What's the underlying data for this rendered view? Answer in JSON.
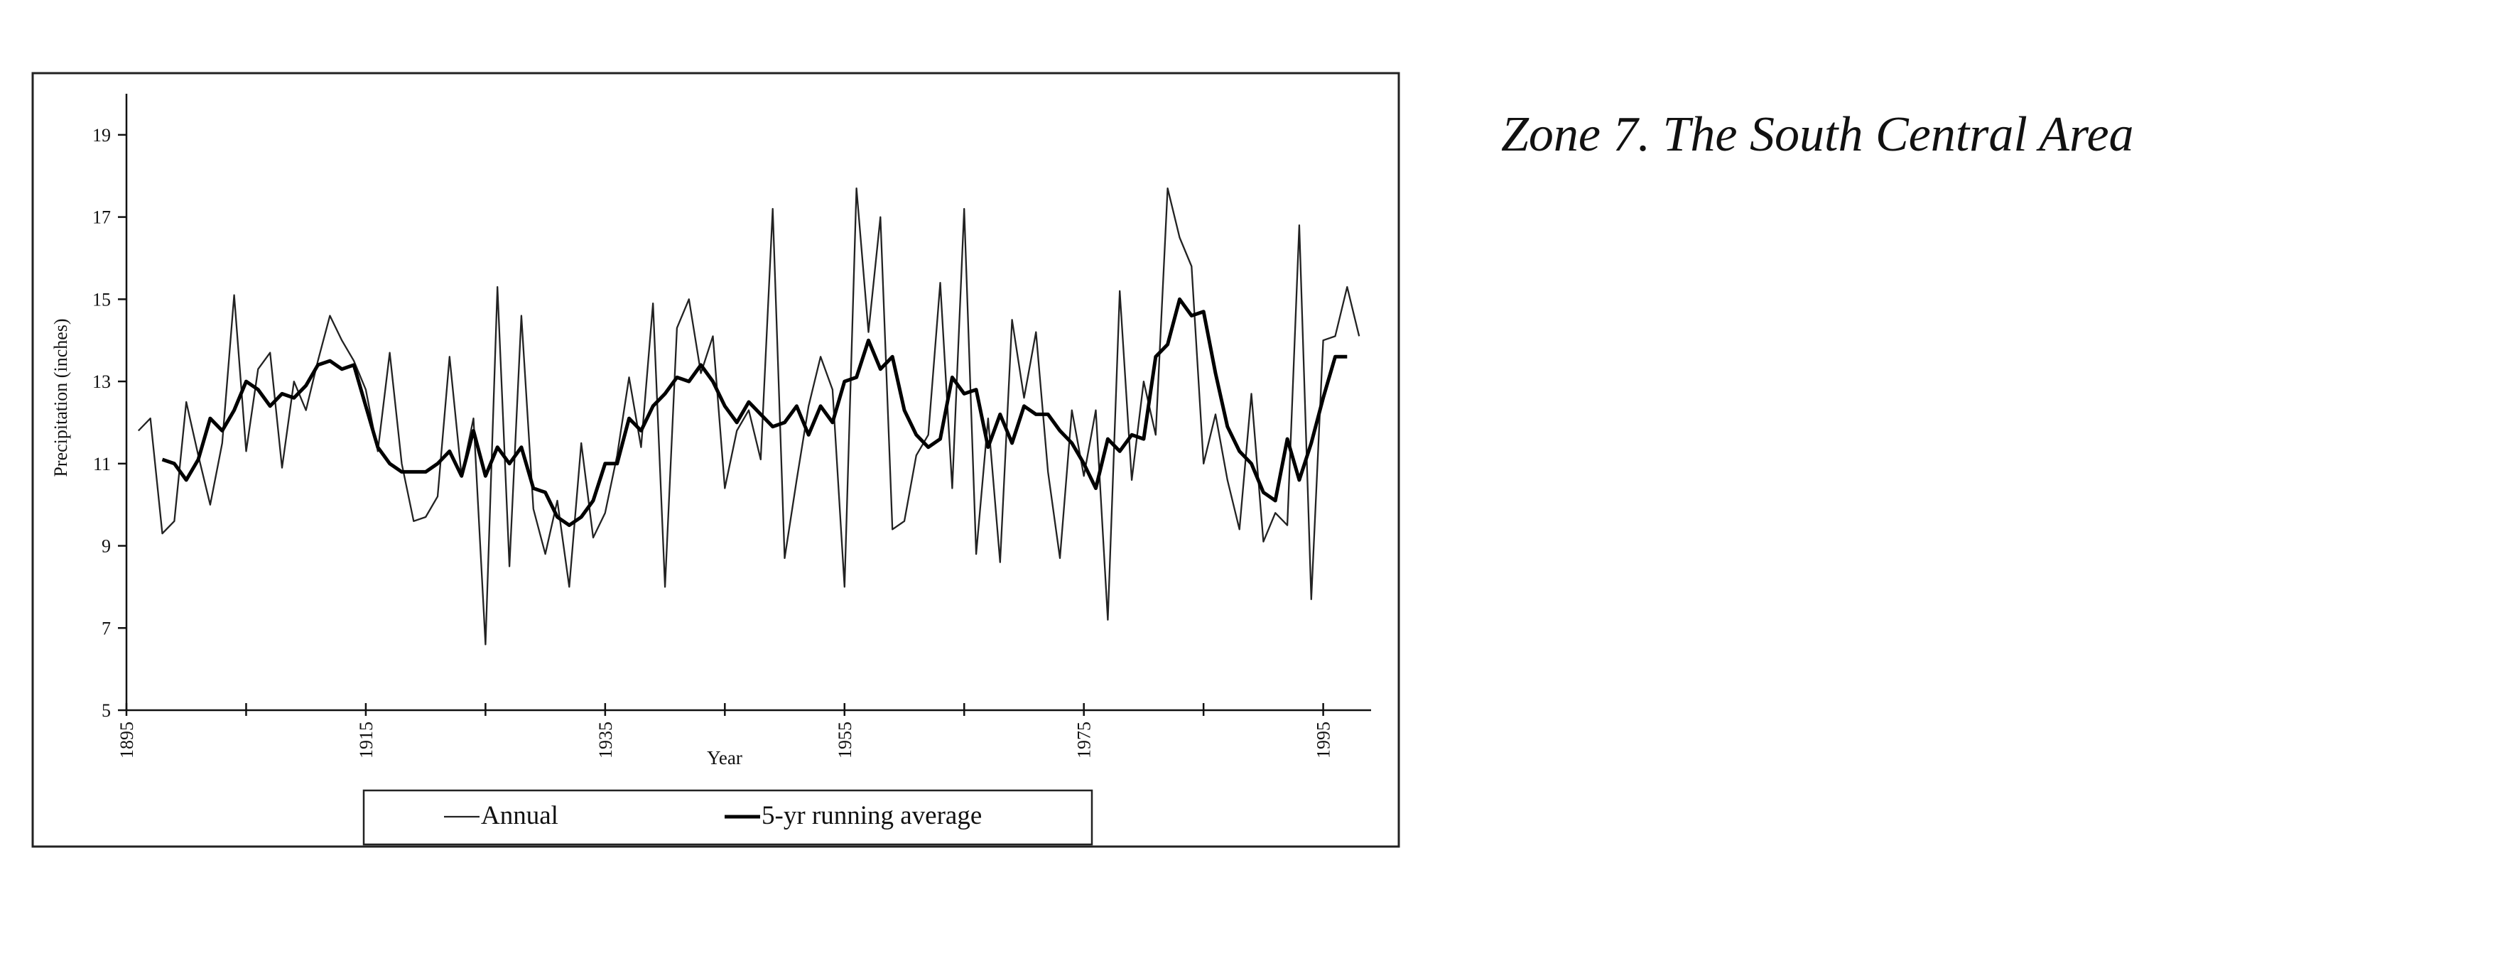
{
  "chart_data": {
    "type": "line",
    "title": "Zone 7. The South Central Area",
    "xlabel": "Year",
    "ylabel": "Precipitation (inches)",
    "x": [
      1896,
      1897,
      1898,
      1899,
      1900,
      1901,
      1902,
      1903,
      1904,
      1905,
      1906,
      1907,
      1908,
      1909,
      1910,
      1911,
      1912,
      1913,
      1914,
      1915,
      1916,
      1917,
      1918,
      1919,
      1920,
      1921,
      1922,
      1923,
      1924,
      1925,
      1926,
      1927,
      1928,
      1929,
      1930,
      1931,
      1932,
      1933,
      1934,
      1935,
      1936,
      1937,
      1938,
      1939,
      1940,
      1941,
      1942,
      1943,
      1944,
      1945,
      1946,
      1947,
      1948,
      1949,
      1950,
      1951,
      1952,
      1953,
      1954,
      1955,
      1956,
      1957,
      1958,
      1959,
      1960,
      1961,
      1962,
      1963,
      1964,
      1965,
      1966,
      1967,
      1968,
      1969,
      1970,
      1971,
      1972,
      1973,
      1974,
      1975,
      1976,
      1977,
      1978,
      1979,
      1980,
      1981,
      1982,
      1983,
      1984,
      1985,
      1986,
      1987,
      1988,
      1989,
      1990,
      1991,
      1992,
      1993,
      1994,
      1995,
      1996,
      1997,
      1998
    ],
    "series": [
      {
        "name": "Annual",
        "color": "#222222",
        "width": 2.3,
        "values": [
          11.8,
          12.1,
          9.3,
          9.6,
          12.5,
          11.2,
          10.0,
          11.5,
          15.1,
          11.3,
          13.3,
          13.7,
          10.9,
          13.0,
          12.3,
          13.5,
          14.6,
          14.0,
          13.5,
          12.8,
          11.3,
          13.7,
          11.0,
          9.6,
          9.7,
          10.2,
          13.6,
          10.7,
          12.1,
          6.6,
          15.3,
          8.5,
          14.6,
          9.9,
          8.8,
          10.1,
          8.0,
          11.5,
          9.2,
          9.8,
          11.2,
          13.1,
          11.4,
          14.9,
          8.0,
          14.3,
          15.0,
          13.2,
          14.1,
          10.4,
          11.8,
          12.3,
          11.1,
          17.2,
          8.7,
          10.6,
          12.4,
          13.6,
          12.8,
          8.0,
          17.7,
          14.2,
          17.0,
          9.4,
          9.6,
          11.2,
          11.7,
          15.4,
          10.4,
          17.2,
          8.8,
          12.1,
          8.6,
          14.5,
          12.6,
          14.2,
          10.8,
          8.7,
          12.3,
          10.7,
          12.3,
          7.2,
          15.2,
          10.6,
          13.0,
          11.7,
          17.7,
          16.5,
          15.8,
          11.0,
          12.2,
          10.6,
          9.4,
          12.7,
          9.1,
          9.8,
          9.5,
          16.8,
          7.7,
          14.0,
          14.1,
          15.3,
          14.1
        ]
      },
      {
        "name": "5-yr running average",
        "color": "#000000",
        "width": 5,
        "values": [
          null,
          null,
          11.1,
          11.0,
          10.6,
          11.1,
          12.1,
          11.8,
          12.3,
          13.0,
          12.8,
          12.4,
          12.7,
          12.6,
          12.9,
          13.4,
          13.5,
          13.3,
          13.4,
          12.4,
          11.4,
          11.0,
          10.8,
          10.8,
          10.8,
          11.0,
          11.3,
          10.7,
          11.8,
          10.7,
          11.4,
          11.0,
          11.4,
          10.4,
          10.3,
          9.7,
          9.5,
          9.7,
          10.1,
          11.0,
          11.0,
          12.1,
          11.8,
          12.4,
          12.7,
          13.1,
          13.0,
          13.4,
          13.0,
          12.4,
          12.0,
          12.5,
          12.2,
          11.9,
          12.0,
          12.4,
          11.7,
          12.4,
          12.0,
          13.0,
          13.1,
          14.0,
          13.3,
          13.6,
          12.3,
          11.7,
          11.4,
          11.6,
          13.1,
          12.7,
          12.8,
          11.4,
          12.2,
          11.5,
          12.4,
          12.2,
          12.2,
          11.8,
          11.5,
          11.0,
          10.4,
          11.6,
          11.3,
          11.7,
          11.6,
          13.6,
          13.9,
          15.0,
          14.6,
          14.7,
          13.2,
          11.9,
          11.3,
          11.0,
          10.3,
          10.1,
          11.6,
          10.6,
          11.5,
          12.6,
          13.6,
          13.6,
          null
        ]
      }
    ],
    "xlim": [
      1895,
      1999
    ],
    "ylim": [
      5,
      20
    ],
    "xticks": [
      1895,
      1915,
      1935,
      1955,
      1975,
      1995
    ],
    "xminor_ticks": [
      1905,
      1925,
      1945,
      1965,
      1985
    ],
    "yticks": [
      5,
      7,
      9,
      11,
      13,
      15,
      17,
      19
    ]
  }
}
